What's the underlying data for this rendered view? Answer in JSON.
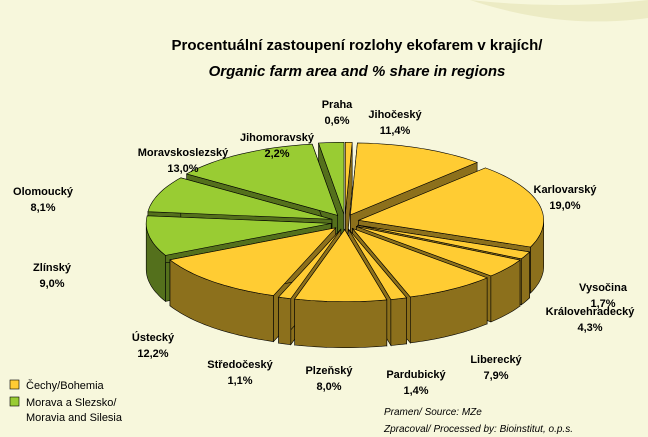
{
  "chart_data": {
    "type": "pie3d",
    "title": "Procentuální zastoupení rozlohy ekofarem v krajích/",
    "subtitle": "Organic farm area and % share in regions",
    "categories": [
      "Praha",
      "Jihočeský",
      "Karlovarský",
      "Vysočina",
      "Královehradecký",
      "Liberecký",
      "Pardubický",
      "Plzeňský",
      "Středočeský",
      "Ústecký",
      "Zlínský",
      "Olomoucký",
      "Moravskoslezský",
      "Jihomoravský"
    ],
    "values": [
      0.6,
      11.4,
      19.0,
      1.7,
      4.3,
      7.9,
      1.4,
      8.0,
      1.1,
      12.2,
      9.0,
      8.1,
      13.0,
      2.2
    ],
    "value_labels": [
      "0,6%",
      "11,4%",
      "19,0%",
      "1,7%",
      "4,3%",
      "7,9%",
      "1,4%",
      "8,0%",
      "1,1%",
      "12,2%",
      "9,0%",
      "8,1%",
      "13,0%",
      "2,2%"
    ],
    "colors": [
      "#ffcc33",
      "#ffcc33",
      "#ffcc33",
      "#ffcc33",
      "#ffcc33",
      "#ffcc33",
      "#ffcc33",
      "#ffcc33",
      "#ffcc33",
      "#ffcc33",
      "#99cc33",
      "#99cc33",
      "#99cc33",
      "#99cc33"
    ],
    "legend": [
      {
        "label": [
          "Čechy/Bohemia"
        ],
        "color": "#ffcc33"
      },
      {
        "label": [
          "Morava a Slezsko/",
          "Moravia and Silesia"
        ],
        "color": "#99cc33"
      }
    ],
    "source": "Pramen/ Source: MZe",
    "processed_by": "Zpracoval/ Processed by: Bioinstitut, o.p.s."
  }
}
